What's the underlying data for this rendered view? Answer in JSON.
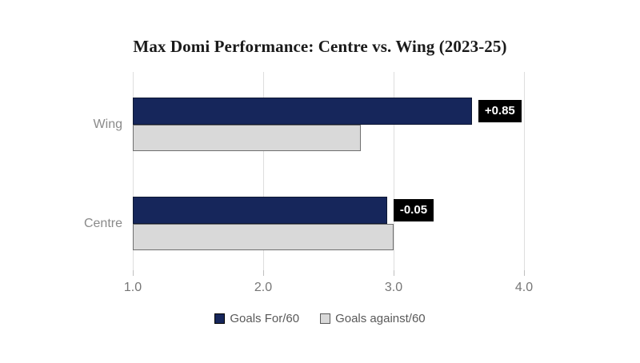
{
  "title": "Max Domi Performance: Centre vs. Wing (2023-25)",
  "chart_data": {
    "type": "bar",
    "orientation": "horizontal",
    "title": "Max Domi Performance: Centre vs. Wing (2023-25)",
    "categories": [
      "Wing",
      "Centre"
    ],
    "series": [
      {
        "name": "Goals For/60",
        "color": "#16265b",
        "border": "#0d1733",
        "swatch_border": "#000000",
        "values": [
          3.6,
          2.95
        ]
      },
      {
        "name": "Goals against/60",
        "color": "#d9d9d9",
        "border": "#6f6f6f",
        "swatch_border": "#595959",
        "values": [
          2.75,
          3.0
        ]
      }
    ],
    "diff_labels": [
      "+0.85",
      "-0.05"
    ],
    "xlim": [
      1.0,
      4.0
    ],
    "xticks": [
      1.0,
      2.0,
      3.0,
      4.0
    ],
    "xtick_labels": [
      "1.0",
      "2.0",
      "3.0",
      "4.0"
    ],
    "grid": true,
    "legend_position": "bottom",
    "diff_label_style": {
      "background": "#000000",
      "text": "#ffffff"
    }
  },
  "colors": {
    "background": "#ffffff",
    "gridline": "#dedede",
    "tick": "#bfbfbf",
    "axis_text": "#767676",
    "category_text": "#8a8a8a",
    "legend_text": "#595959",
    "title_text": "#1a1a1a"
  }
}
